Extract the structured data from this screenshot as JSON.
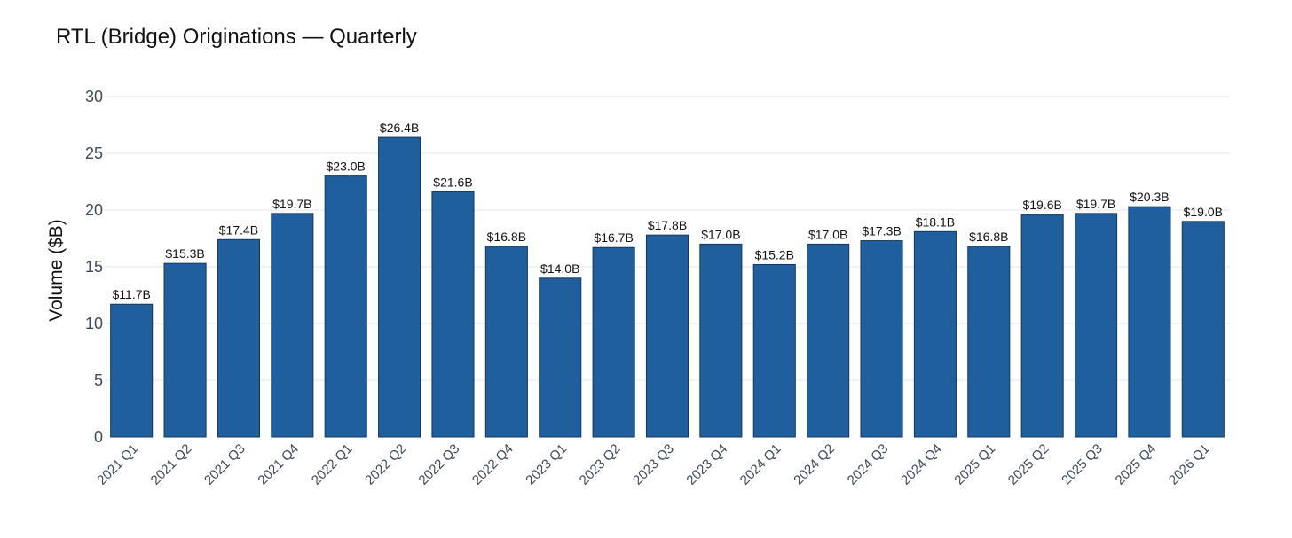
{
  "chart_data": {
    "type": "bar",
    "title": "RTL (Bridge) Originations — Quarterly",
    "xlabel": "",
    "ylabel": "Volume ($B)",
    "ylim": [
      0,
      30
    ],
    "yticks": [
      0,
      5,
      10,
      15,
      20,
      25,
      30
    ],
    "grid": true,
    "legend": "none",
    "categories": [
      "2021 Q1",
      "2021 Q2",
      "2021 Q3",
      "2021 Q4",
      "2022 Q1",
      "2022 Q2",
      "2022 Q3",
      "2022 Q4",
      "2023 Q1",
      "2023 Q2",
      "2023 Q3",
      "2023 Q4",
      "2024 Q1",
      "2024 Q2",
      "2024 Q3",
      "2024 Q4",
      "2025 Q1",
      "2025 Q2",
      "2025 Q3",
      "2025 Q4",
      "2026 Q1"
    ],
    "values": [
      11.7,
      15.3,
      17.4,
      19.7,
      23.0,
      26.4,
      21.6,
      16.8,
      14.0,
      16.7,
      17.8,
      17.0,
      15.2,
      17.0,
      17.3,
      18.1,
      16.8,
      19.6,
      19.7,
      20.3,
      19.0
    ],
    "data_labels": [
      "$11.7B",
      "$15.3B",
      "$17.4B",
      "$19.7B",
      "$23.0B",
      "$26.4B",
      "$21.6B",
      "$16.8B",
      "$14.0B",
      "$16.7B",
      "$17.8B",
      "$17.0B",
      "$15.2B",
      "$17.0B",
      "$17.3B",
      "$18.1B",
      "$16.8B",
      "$19.6B",
      "$19.7B",
      "$20.3B",
      "$19.0B"
    ],
    "colors": {
      "bar": "#1f5f9e",
      "bar_outline": "#17375a"
    }
  }
}
